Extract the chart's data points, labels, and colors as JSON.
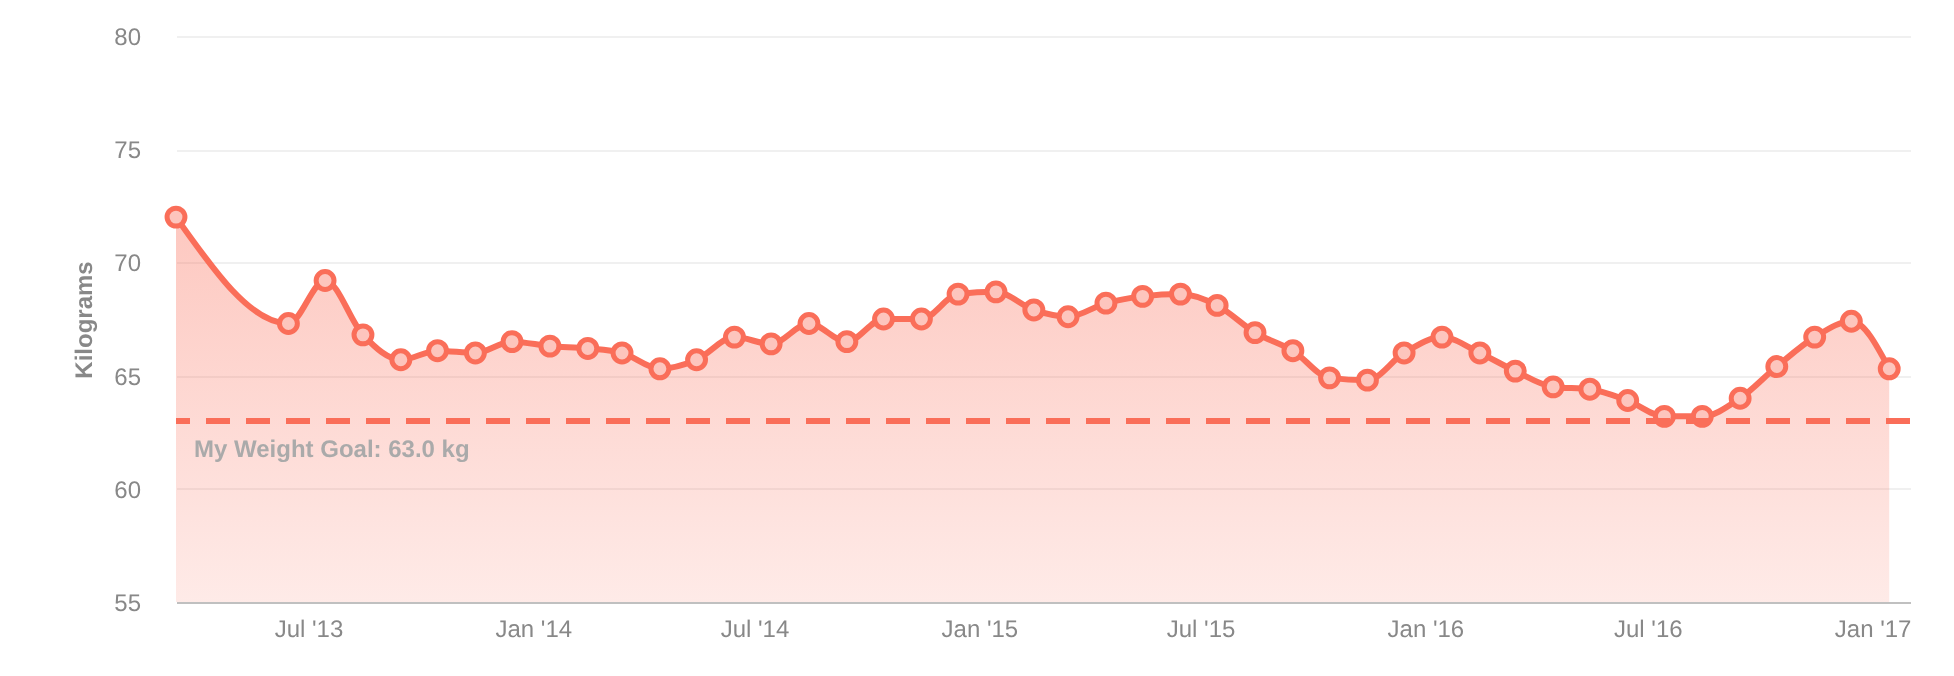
{
  "chart_data": {
    "type": "area",
    "ylabel": "Kilograms",
    "x": [
      "2013-03-15",
      "2013-06-15",
      "2013-07-15",
      "2013-08-15",
      "2013-09-15",
      "2013-10-15",
      "2013-11-15",
      "2013-12-15",
      "2014-01-15",
      "2014-02-15",
      "2014-03-15",
      "2014-04-15",
      "2014-05-15",
      "2014-06-15",
      "2014-07-15",
      "2014-08-15",
      "2014-09-15",
      "2014-10-15",
      "2014-11-15",
      "2014-12-15",
      "2015-01-15",
      "2015-02-15",
      "2015-03-15",
      "2015-04-15",
      "2015-05-15",
      "2015-06-15",
      "2015-07-15",
      "2015-08-15",
      "2015-09-15",
      "2015-10-15",
      "2015-11-15",
      "2015-12-15",
      "2016-01-15",
      "2016-02-15",
      "2016-03-15",
      "2016-04-15",
      "2016-05-15",
      "2016-06-15",
      "2016-07-15",
      "2016-08-15",
      "2016-09-15",
      "2016-10-15",
      "2016-11-15",
      "2016-12-15",
      "2017-01-15"
    ],
    "series": [
      {
        "color": "#fa6e59",
        "values": [
          72.0,
          67.3,
          69.2,
          66.8,
          65.7,
          66.1,
          66.0,
          66.5,
          66.3,
          66.2,
          66.0,
          65.3,
          65.7,
          66.7,
          66.4,
          67.3,
          66.5,
          67.5,
          67.5,
          68.6,
          68.7,
          67.9,
          67.6,
          68.2,
          68.5,
          68.6,
          68.1,
          66.9,
          66.1,
          64.9,
          64.8,
          66.0,
          66.7,
          66.0,
          65.2,
          64.5,
          64.4,
          63.9,
          63.2,
          63.2,
          64.0,
          65.4,
          66.7,
          67.4,
          65.3
        ]
      }
    ],
    "xlim": [
      "2013-03-15",
      "2017-02-01"
    ],
    "xticks": [
      {
        "value": "2013-07-01",
        "label": "Jul '13"
      },
      {
        "value": "2014-01-01",
        "label": "Jan '14"
      },
      {
        "value": "2014-07-01",
        "label": "Jul '14"
      },
      {
        "value": "2015-01-01",
        "label": "Jan '15"
      },
      {
        "value": "2015-07-01",
        "label": "Jul '15"
      },
      {
        "value": "2016-01-01",
        "label": "Jan '16"
      },
      {
        "value": "2016-07-01",
        "label": "Jul '16"
      },
      {
        "value": "2017-01-01",
        "label": "Jan '17"
      }
    ],
    "ylim": [
      55,
      80
    ],
    "yticks": [
      55,
      60,
      65,
      70,
      75,
      80
    ],
    "ref_lines": [
      {
        "axis": "y",
        "value": 63,
        "label": "My Weight Goal: 63.0 kg",
        "color": "#fa6e59",
        "line_style": "dashed"
      }
    ],
    "grid": "y",
    "marker": "circle",
    "line_style": "solid"
  }
}
